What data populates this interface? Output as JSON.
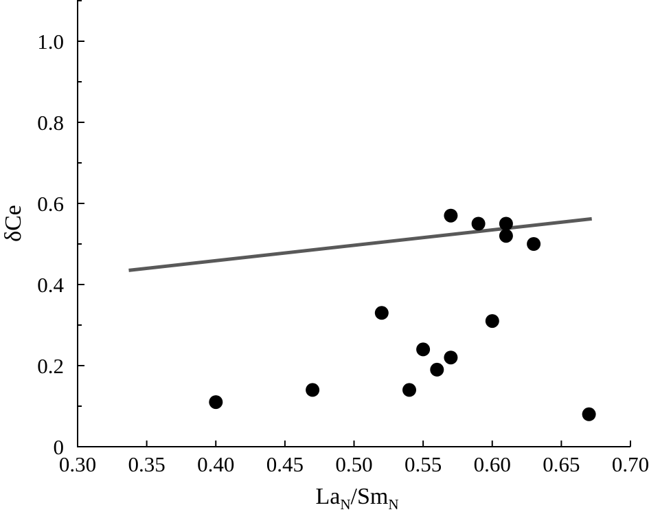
{
  "chart_data": {
    "type": "scatter",
    "title": "",
    "xlabel": {
      "main1": "La",
      "sub1": "N",
      "main2": "/Sm",
      "sub2": "N"
    },
    "ylabel": "δCe",
    "xlim": [
      0.3,
      0.7
    ],
    "ylim": [
      0,
      1.1
    ],
    "x_ticks": [
      "0.30",
      "0.35",
      "0.40",
      "0.45",
      "0.50",
      "0.55",
      "0.60",
      "0.65",
      "0.70"
    ],
    "y_ticks": [
      "0",
      "0.2",
      "0.4",
      "0.6",
      "0.8",
      "1.0"
    ],
    "y_minor_step": 0.1,
    "grid": false,
    "legend": "none",
    "series": [
      {
        "type": "scatter",
        "color": "#000000",
        "points": [
          {
            "x": 0.4,
            "y": 0.11
          },
          {
            "x": 0.47,
            "y": 0.14
          },
          {
            "x": 0.52,
            "y": 0.33
          },
          {
            "x": 0.54,
            "y": 0.14
          },
          {
            "x": 0.55,
            "y": 0.24
          },
          {
            "x": 0.56,
            "y": 0.19
          },
          {
            "x": 0.57,
            "y": 0.22
          },
          {
            "x": 0.57,
            "y": 0.57
          },
          {
            "x": 0.59,
            "y": 0.55
          },
          {
            "x": 0.6,
            "y": 0.31
          },
          {
            "x": 0.61,
            "y": 0.55
          },
          {
            "x": 0.61,
            "y": 0.52
          },
          {
            "x": 0.63,
            "y": 0.5
          },
          {
            "x": 0.67,
            "y": 0.08
          }
        ]
      },
      {
        "type": "line",
        "color": "#595959",
        "points": [
          {
            "x": 0.337,
            "y": 0.435
          },
          {
            "x": 0.672,
            "y": 0.562
          }
        ]
      }
    ]
  }
}
